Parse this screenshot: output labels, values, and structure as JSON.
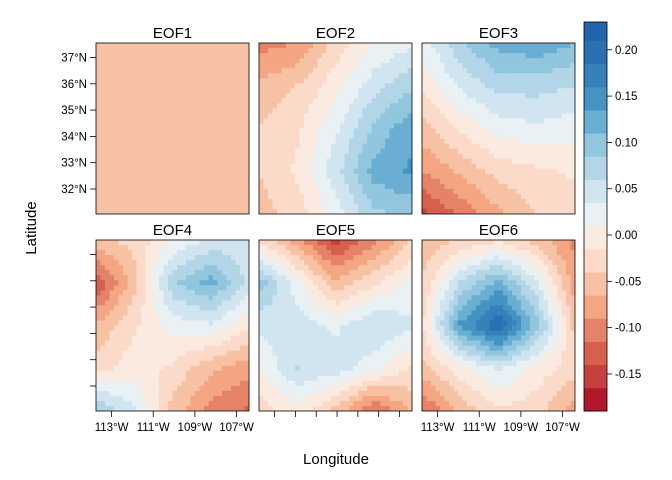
{
  "chart_data": {
    "type": "heatmap",
    "subtype": "filled-contour-panels",
    "xlabel": "Longitude",
    "ylabel": "Latitude",
    "layout": "3 columns x 2 rows",
    "panels": [
      {
        "title": "EOF1",
        "pattern": [
          [
            -0.06,
            -0.06,
            -0.06,
            -0.06,
            -0.06
          ],
          [
            -0.06,
            -0.06,
            -0.06,
            -0.06,
            -0.06
          ],
          [
            -0.06,
            -0.06,
            -0.06,
            -0.06,
            -0.06
          ],
          [
            -0.06,
            -0.06,
            -0.06,
            -0.06,
            -0.06
          ],
          [
            -0.06,
            -0.06,
            -0.06,
            -0.06,
            -0.06
          ]
        ]
      },
      {
        "title": "EOF2",
        "pattern": [
          [
            -0.1,
            -0.09,
            -0.03,
            0.01,
            0.03
          ],
          [
            -0.06,
            -0.04,
            0.0,
            0.05,
            0.08
          ],
          [
            -0.04,
            -0.02,
            0.03,
            0.09,
            0.13
          ],
          [
            -0.04,
            -0.01,
            0.05,
            0.12,
            0.14
          ],
          [
            -0.05,
            -0.03,
            0.02,
            0.08,
            0.09
          ]
        ]
      },
      {
        "title": "EOF3",
        "pattern": [
          [
            0.02,
            0.08,
            0.12,
            0.13,
            0.11
          ],
          [
            -0.01,
            0.04,
            0.07,
            0.07,
            0.06
          ],
          [
            -0.05,
            -0.01,
            0.02,
            0.03,
            0.02
          ],
          [
            -0.09,
            -0.06,
            -0.03,
            -0.02,
            -0.01
          ],
          [
            -0.15,
            -0.11,
            -0.07,
            -0.04,
            -0.03
          ]
        ]
      },
      {
        "title": "EOF4",
        "pattern": [
          [
            -0.05,
            -0.03,
            0.01,
            0.04,
            0.05
          ],
          [
            -0.14,
            -0.05,
            0.08,
            0.12,
            0.05
          ],
          [
            -0.06,
            -0.02,
            0.02,
            0.03,
            -0.01
          ],
          [
            -0.03,
            0.0,
            -0.02,
            -0.06,
            -0.08
          ],
          [
            0.09,
            0.04,
            -0.05,
            -0.1,
            -0.12
          ]
        ]
      },
      {
        "title": "EOF5",
        "pattern": [
          [
            -0.02,
            -0.08,
            -0.15,
            -0.1,
            -0.04
          ],
          [
            0.1,
            0.02,
            -0.06,
            -0.02,
            0.02
          ],
          [
            0.04,
            0.05,
            0.03,
            0.06,
            0.04
          ],
          [
            0.01,
            0.06,
            0.05,
            0.02,
            -0.02
          ],
          [
            -0.03,
            0.0,
            -0.05,
            -0.12,
            -0.06
          ]
        ]
      },
      {
        "title": "EOF6",
        "pattern": [
          [
            -0.06,
            -0.04,
            -0.02,
            -0.05,
            -0.1
          ],
          [
            -0.04,
            0.06,
            0.12,
            0.04,
            -0.08
          ],
          [
            -0.02,
            0.14,
            0.21,
            0.1,
            -0.05
          ],
          [
            -0.05,
            0.0,
            0.04,
            0.0,
            -0.03
          ],
          [
            -0.12,
            -0.06,
            -0.02,
            -0.03,
            -0.08
          ]
        ]
      }
    ],
    "colorkey": {
      "ticks": [
        "0.20",
        "0.15",
        "0.10",
        "0.05",
        "0.00",
        "-0.05",
        "-0.10",
        "-0.15"
      ],
      "tick_values": [
        0.2,
        0.15,
        0.1,
        0.05,
        0.0,
        -0.05,
        -0.1,
        -0.15
      ],
      "range": [
        -0.19,
        0.23
      ],
      "levels": [
        -0.19,
        -0.165,
        -0.14,
        -0.115,
        -0.09,
        -0.065,
        -0.04,
        -0.015,
        0.01,
        0.035,
        0.06,
        0.085,
        0.11,
        0.135,
        0.16,
        0.185,
        0.21,
        0.23
      ],
      "colors": [
        "#b2182b",
        "#c7403f",
        "#d6604d",
        "#e58368",
        "#f4a582",
        "#f7c1a4",
        "#fbdac9",
        "#fbeae0",
        "#eaf1f5",
        "#d1e5f0",
        "#b3d5e8",
        "#92c5de",
        "#6aaed4",
        "#4393c3",
        "#3581ba",
        "#2971b1",
        "#2166ac"
      ]
    },
    "y_ticks": [
      "37°N",
      "36°N",
      "35°N",
      "34°N",
      "33°N",
      "32°N"
    ],
    "y_tick_values": [
      37,
      36,
      35,
      34,
      33,
      32
    ],
    "y_range": [
      31.05,
      37.55
    ],
    "x_ticks": [
      "113°W",
      "111°W",
      "109°W",
      "107°W"
    ],
    "x_tick_values": [
      -113,
      -111,
      -109,
      -107
    ],
    "x_range": [
      -113.75,
      -106.4
    ]
  }
}
